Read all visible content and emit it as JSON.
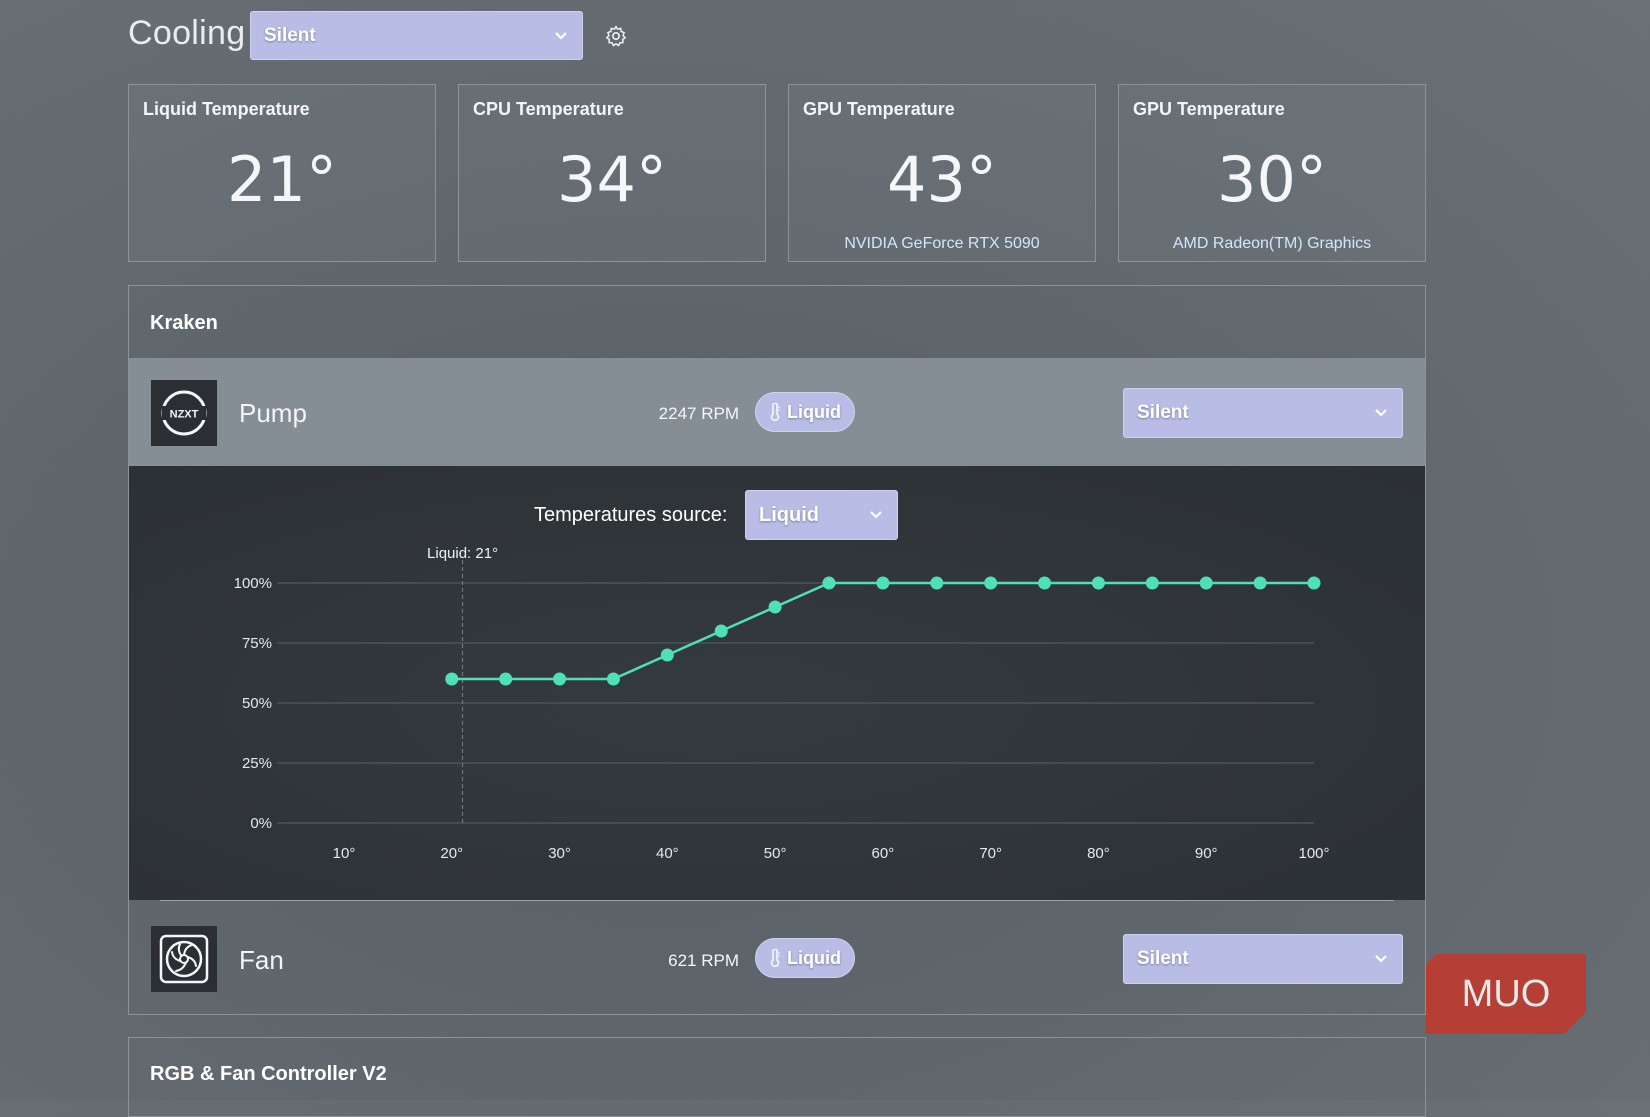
{
  "header": {
    "title": "Cooling",
    "profile_value": "Silent"
  },
  "cards": [
    {
      "label": "Liquid Temperature",
      "value": "21°",
      "sub": ""
    },
    {
      "label": "CPU Temperature",
      "value": "34°",
      "sub": ""
    },
    {
      "label": "GPU Temperature",
      "value": "43°",
      "sub": "NVIDIA GeForce RTX 5090"
    },
    {
      "label": "GPU Temperature",
      "value": "30°",
      "sub": "AMD Radeon(TM) Graphics"
    }
  ],
  "kraken": {
    "title": "Kraken",
    "pump": {
      "name": "Pump",
      "rpm": "2247 RPM",
      "source_pill": "Liquid",
      "profile_value": "Silent",
      "icon": "nzxt-logo-icon",
      "logo_text": "NZXT"
    },
    "temp_source": {
      "label": "Temperatures source:",
      "value": "Liquid"
    },
    "fan": {
      "name": "Fan",
      "rpm": "621 RPM",
      "source_pill": "Liquid",
      "profile_value": "Silent",
      "icon": "fan-icon"
    }
  },
  "rgb_section": {
    "title": "RGB & Fan Controller V2"
  },
  "watermark": {
    "text": "MUO",
    "color": "#c0392b"
  },
  "chart_data": {
    "type": "line",
    "x_ticks": [
      "10°",
      "20°",
      "30°",
      "40°",
      "50°",
      "60°",
      "70°",
      "80°",
      "90°",
      "100°"
    ],
    "y_ticks": [
      "100%",
      "75%",
      "50%",
      "25%",
      "0%"
    ],
    "xlim": [
      10,
      100
    ],
    "ylim": [
      0,
      100
    ],
    "marker": {
      "x": 21,
      "label": "Liquid: 21°"
    },
    "series": [
      {
        "x": [
          20,
          25,
          30,
          35,
          40,
          45,
          50,
          55,
          60,
          65,
          70,
          75,
          80,
          85,
          90,
          95,
          100
        ],
        "y": [
          60,
          60,
          60,
          60,
          70,
          80,
          90,
          100,
          100,
          100,
          100,
          100,
          100,
          100,
          100,
          100,
          100
        ],
        "color": "#4fe0b8"
      }
    ],
    "grid": true
  },
  "colors": {
    "accent": "#b9bde6",
    "curve": "#4fe0b8"
  }
}
